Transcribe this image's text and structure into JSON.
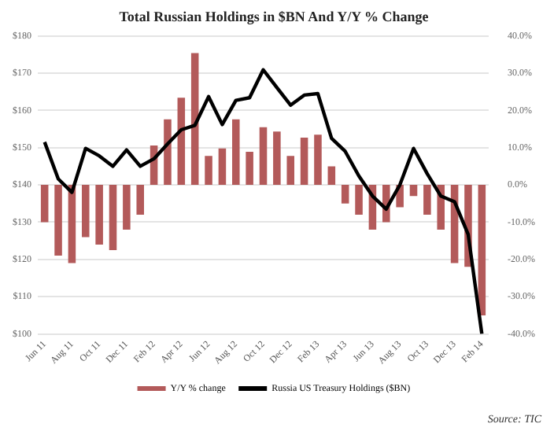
{
  "chart_data": {
    "type": "bar",
    "title": "Total Russian Holdings in $BN And Y/Y % Change",
    "categories": [
      "Jun 11",
      null,
      "Aug 11",
      null,
      "Oct 11",
      null,
      "Dec 11",
      null,
      "Feb 12",
      null,
      "Apr 12",
      null,
      "Jun 12",
      null,
      "Aug 12",
      null,
      "Oct 12",
      null,
      "Dec 12",
      null,
      "Feb 13",
      null,
      "Apr 13",
      null,
      "Jun 13",
      null,
      "Aug 13",
      null,
      "Oct 13",
      null,
      "Dec 13",
      null,
      "Feb 14"
    ],
    "series": [
      {
        "name": "Y/Y % change",
        "axis": "y2",
        "color": "#b35a5a",
        "values": [
          -10,
          -19,
          -21,
          -14,
          -16,
          -17.5,
          -12,
          -8,
          10.6,
          17.6,
          23.4,
          35.4,
          7.8,
          9.8,
          17.6,
          8.9,
          15.5,
          14.3,
          7.8,
          12.7,
          13.5,
          5,
          -5,
          -8,
          -12,
          -10,
          -6,
          -3,
          -8,
          -12,
          -21,
          -22,
          -35
        ]
      },
      {
        "name": "Russia US Treasury Holdings ($BN)",
        "type": "line",
        "color": "#000000",
        "values": [
          151.5,
          141.6,
          138,
          149.8,
          147.8,
          145,
          149.4,
          145,
          147,
          151,
          154.8,
          156,
          163.7,
          156.2,
          162.7,
          163.4,
          170.9,
          166.1,
          161.4,
          164.1,
          164.5,
          152.5,
          149,
          142.4,
          137,
          133.5,
          140,
          149.8,
          143,
          137,
          135.5,
          126.7,
          100
        ]
      }
    ],
    "ylim": [
      100,
      180
    ],
    "yticks": [
      {
        "value": 100,
        "label": "$100"
      },
      {
        "value": 110,
        "label": "$110"
      },
      {
        "value": 120,
        "label": "$120"
      },
      {
        "value": 130,
        "label": "$130"
      },
      {
        "value": 140,
        "label": "$140"
      },
      {
        "value": 150,
        "label": "$150"
      },
      {
        "value": 160,
        "label": "$160"
      },
      {
        "value": 170,
        "label": "$170"
      },
      {
        "value": 180,
        "label": "$180"
      }
    ],
    "y2lim": [
      -40,
      40
    ],
    "y2ticks": [
      {
        "value": -40,
        "label": "-40.0%"
      },
      {
        "value": -30,
        "label": "-30.0%"
      },
      {
        "value": -20,
        "label": "-20.0%"
      },
      {
        "value": -10,
        "label": "-10.0%"
      },
      {
        "value": 0,
        "label": "0.0%"
      },
      {
        "value": 10,
        "label": "10.0%"
      },
      {
        "value": 20,
        "label": "20.0%"
      },
      {
        "value": 30,
        "label": "30.0%"
      },
      {
        "value": 40,
        "label": "40.0%"
      }
    ],
    "grid": "y",
    "legend": "bottom",
    "marker": "none",
    "annotations": [
      "Source: TIC"
    ]
  }
}
